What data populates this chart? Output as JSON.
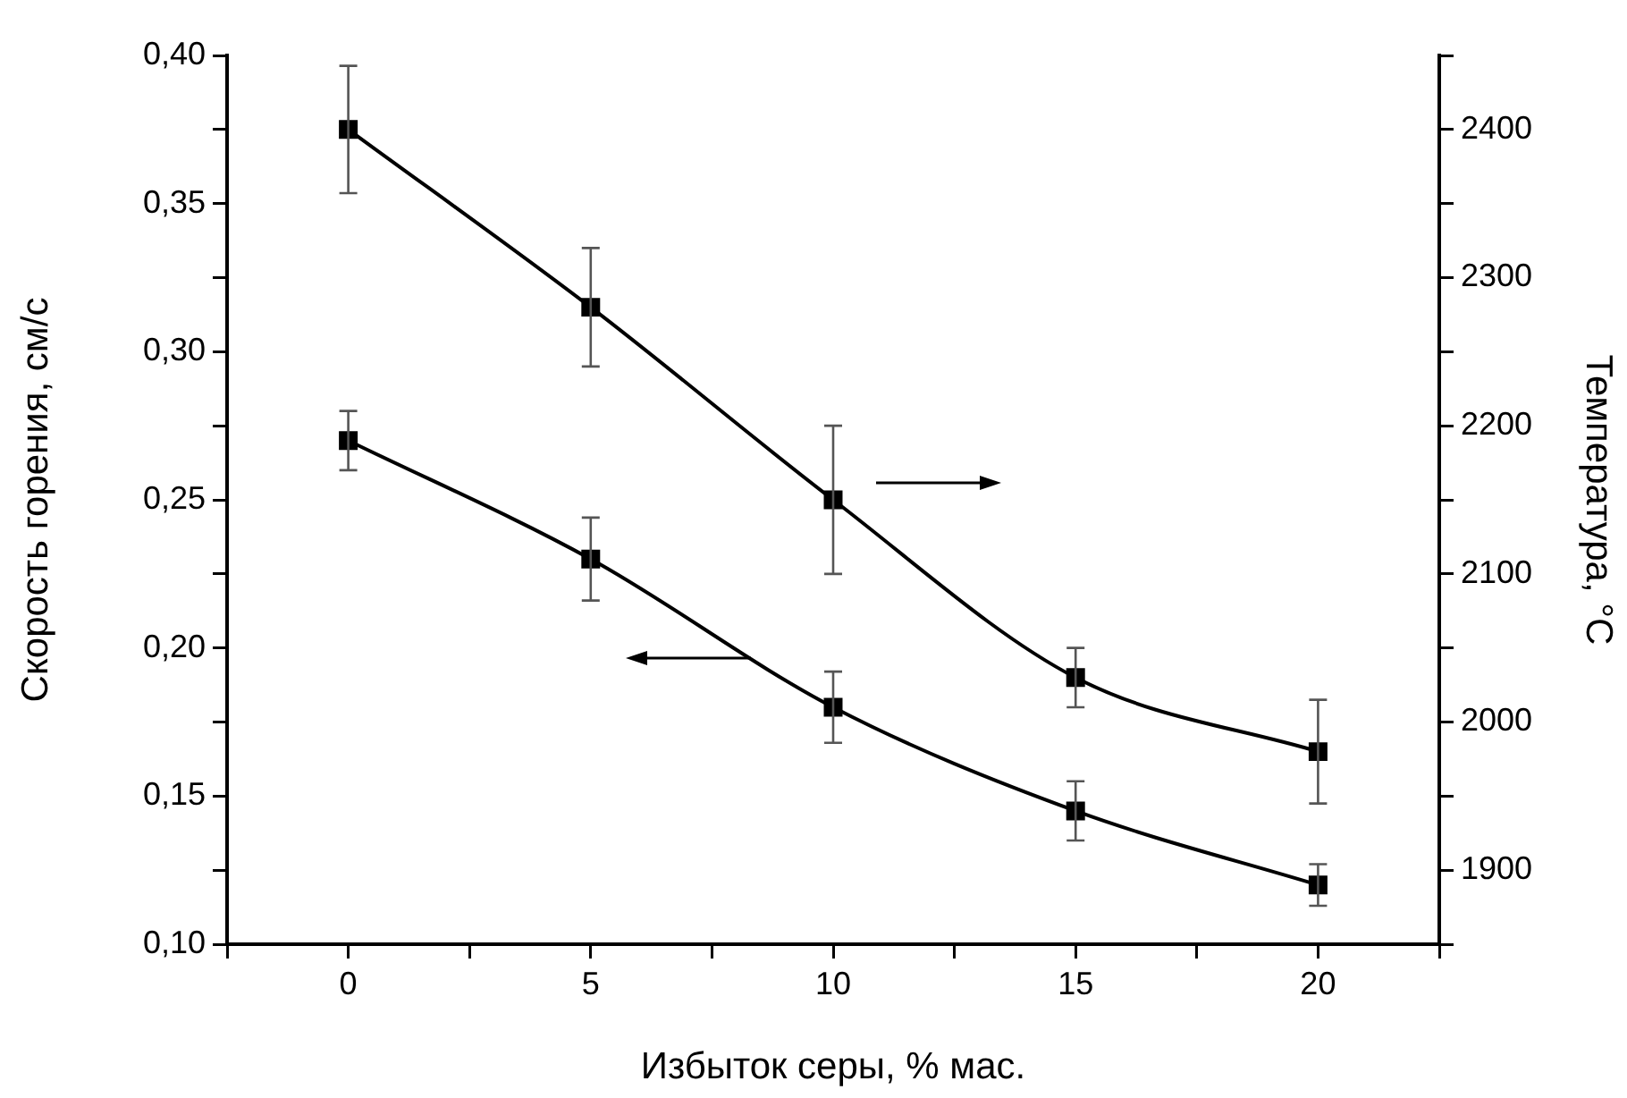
{
  "chart_data": {
    "type": "line",
    "xlabel": "Избыток серы, % мас.",
    "ylabel": "Скорость горения, см/с",
    "y2label": "Температура, °С",
    "x": [
      0,
      5,
      10,
      15,
      20
    ],
    "series": [
      {
        "color": "#000000",
        "values": [
          0.27,
          0.23,
          0.18,
          0.145,
          0.12
        ],
        "errors": [
          0.01,
          0.014,
          0.012,
          0.01,
          0.007
        ]
      },
      {
        "color": "#000000",
        "axis": "y2",
        "values": [
          2400,
          2280,
          2150,
          2030,
          1980
        ],
        "errors": [
          43,
          40,
          50,
          20,
          35
        ]
      }
    ],
    "xlim": [
      -2.5,
      22.5
    ],
    "xticks": [
      {
        "value": -2.5,
        "label": null
      },
      0,
      {
        "value": 2.5,
        "label": null
      },
      5,
      {
        "value": 7.5,
        "label": null
      },
      10,
      {
        "value": 12.5,
        "label": null
      },
      15,
      {
        "value": 17.5,
        "label": null
      },
      20,
      {
        "value": 22.5,
        "label": null
      }
    ],
    "ylim": [
      0.1,
      0.4
    ],
    "yticks": [
      {
        "value": 0.1,
        "label": "0,10"
      },
      {
        "value": 0.125,
        "label": null
      },
      {
        "value": 0.15,
        "label": "0,15"
      },
      {
        "value": 0.175,
        "label": null
      },
      {
        "value": 0.2,
        "label": "0,20"
      },
      {
        "value": 0.225,
        "label": null
      },
      {
        "value": 0.25,
        "label": "0,25"
      },
      {
        "value": 0.275,
        "label": null
      },
      {
        "value": 0.3,
        "label": "0,30"
      },
      {
        "value": 0.325,
        "label": null
      },
      {
        "value": 0.35,
        "label": "0,35"
      },
      {
        "value": 0.375,
        "label": null
      },
      {
        "value": 0.4,
        "label": "0,40"
      }
    ],
    "y2lim": [
      1850,
      2450
    ],
    "y2ticks": [
      {
        "value": 1850,
        "label": null
      },
      1900,
      {
        "value": 1950,
        "label": null
      },
      2000,
      {
        "value": 2050,
        "label": null
      },
      2100,
      {
        "value": 2150,
        "label": null
      },
      2200,
      {
        "value": 2250,
        "label": null
      },
      2300,
      {
        "value": 2350,
        "label": null
      },
      2400,
      {
        "value": 2450,
        "label": null
      }
    ],
    "grid": false,
    "legend": false,
    "marker": "square",
    "line_style": "solid"
  }
}
